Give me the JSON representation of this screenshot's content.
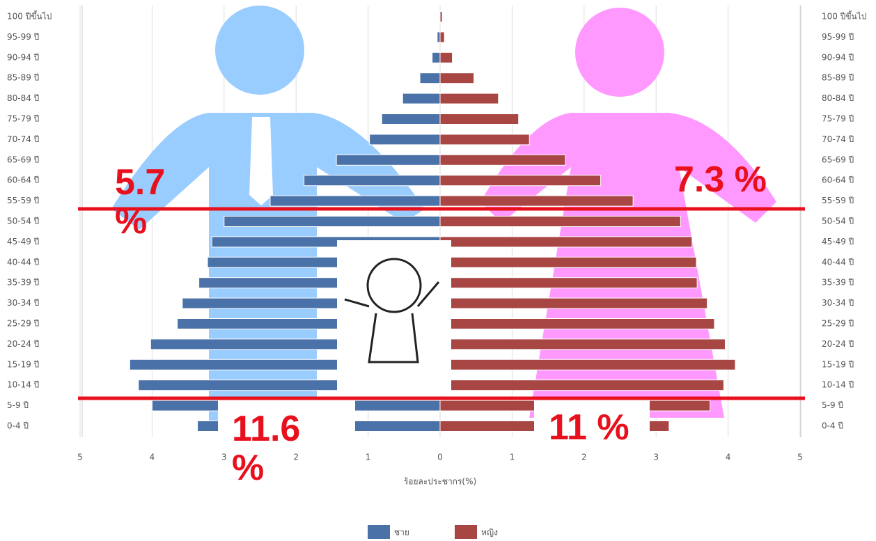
{
  "chart_data": {
    "type": "population-pyramid",
    "x_label": "ร้อยละประชากร(%)",
    "categories": [
      "0-4 ปี",
      "5-9 ปี",
      "10-14 ปี",
      "15-19 ปี",
      "20-24 ปี",
      "25-29 ปี",
      "30-34 ปี",
      "35-39 ปี",
      "40-44 ปี",
      "45-49 ปี",
      "50-54 ปี",
      "55-59 ปี",
      "60-64 ปี",
      "65-69 ปี",
      "70-74 ปี",
      "75-79 ปี",
      "80-84 ปี",
      "85-89 ปี",
      "90-94 ปี",
      "95-99 ปี",
      "100 ปีขึ้นไป"
    ],
    "series": [
      {
        "name": "ชาย",
        "color": "#4a72a8",
        "side": "left",
        "values": [
          3.37,
          4.0,
          4.19,
          4.31,
          4.02,
          3.65,
          3.58,
          3.35,
          3.23,
          3.17,
          3.0,
          2.36,
          1.89,
          1.44,
          0.98,
          0.81,
          0.52,
          0.28,
          0.11,
          0.04,
          0.01
        ]
      },
      {
        "name": "หญิง",
        "color": "#a84644",
        "side": "right",
        "values": [
          3.18,
          3.75,
          3.94,
          4.1,
          3.96,
          3.81,
          3.71,
          3.57,
          3.56,
          3.5,
          3.34,
          2.68,
          2.23,
          1.74,
          1.24,
          1.09,
          0.81,
          0.47,
          0.17,
          0.06,
          0.03
        ]
      }
    ],
    "xlim": [
      0,
      5
    ],
    "xticks": [
      0,
      1,
      2,
      3,
      4,
      5
    ],
    "grid": true,
    "annotations": [
      "5.7 %",
      "7.3 %",
      "11.6 %",
      "11 %"
    ]
  }
}
